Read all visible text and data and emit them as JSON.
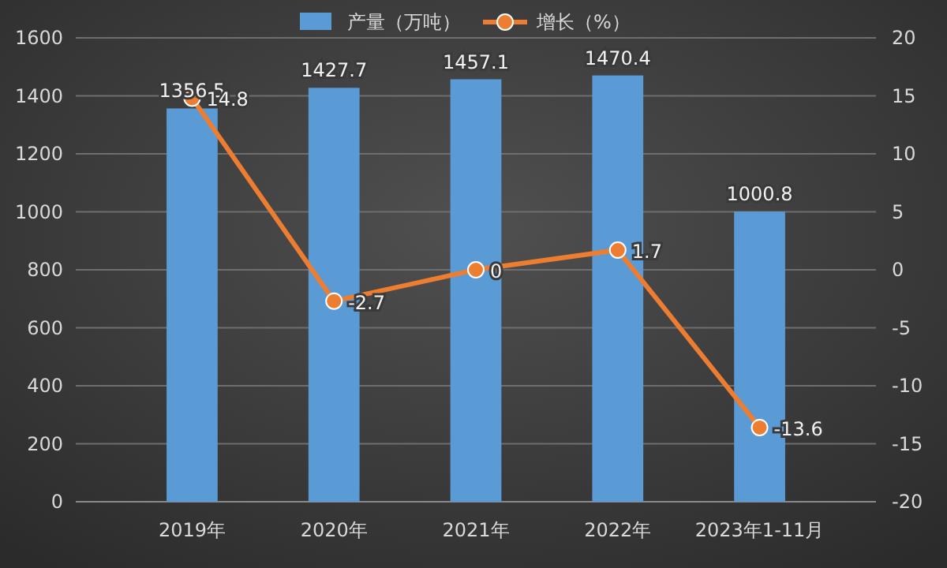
{
  "chart_data": {
    "type": "bar",
    "categories": [
      "2019年",
      "2020年",
      "2021年",
      "2022年",
      "2023年1-11月"
    ],
    "series": [
      {
        "name": "产量（万吨）",
        "color": "#5b9bd5",
        "values": [
          1356.5,
          1427.7,
          1457.1,
          1470.4,
          1000.8
        ]
      },
      {
        "name": "增长（%）",
        "type": "line",
        "axis": "y2",
        "color": "#ed7d31",
        "values": [
          14.8,
          -2.7,
          0,
          1.7,
          -13.6
        ]
      }
    ],
    "ylim": [
      0,
      1600
    ],
    "yticks": [
      0,
      200,
      400,
      600,
      800,
      1000,
      1200,
      1400,
      1600
    ],
    "y2lim": [
      -20,
      20
    ],
    "y2ticks": [
      -20,
      -15,
      -10,
      -5,
      0,
      5,
      10,
      15,
      20
    ],
    "grid": "y",
    "legend": "top",
    "marker": "circle",
    "line_style": "solid",
    "data_labels": true
  }
}
